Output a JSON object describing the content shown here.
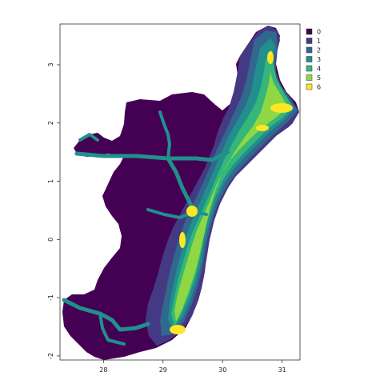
{
  "map": {
    "x_ticks": [
      {
        "value": 28,
        "label": "28"
      },
      {
        "value": 29,
        "label": "29"
      },
      {
        "value": 30,
        "label": "30"
      },
      {
        "value": 31,
        "label": "31"
      }
    ],
    "y_ticks": [
      {
        "value": 3,
        "label": "3"
      },
      {
        "value": 2,
        "label": "2"
      },
      {
        "value": 1,
        "label": "1"
      },
      {
        "value": 0,
        "label": "0"
      },
      {
        "value": -1,
        "label": "-1"
      },
      {
        "value": -2,
        "label": "-2"
      }
    ],
    "extent": {
      "xmin": 27.27,
      "xmax": 31.3,
      "ymin": -2.07,
      "ymax": 3.7
    }
  },
  "legend": {
    "items": [
      {
        "label": "0",
        "color": "#440154"
      },
      {
        "label": "1",
        "color": "#443a83"
      },
      {
        "label": "2",
        "color": "#31688e"
      },
      {
        "label": "3",
        "color": "#21908d"
      },
      {
        "label": "4",
        "color": "#35b779"
      },
      {
        "label": "5",
        "color": "#8fd744"
      },
      {
        "label": "6",
        "color": "#fde725"
      }
    ]
  }
}
